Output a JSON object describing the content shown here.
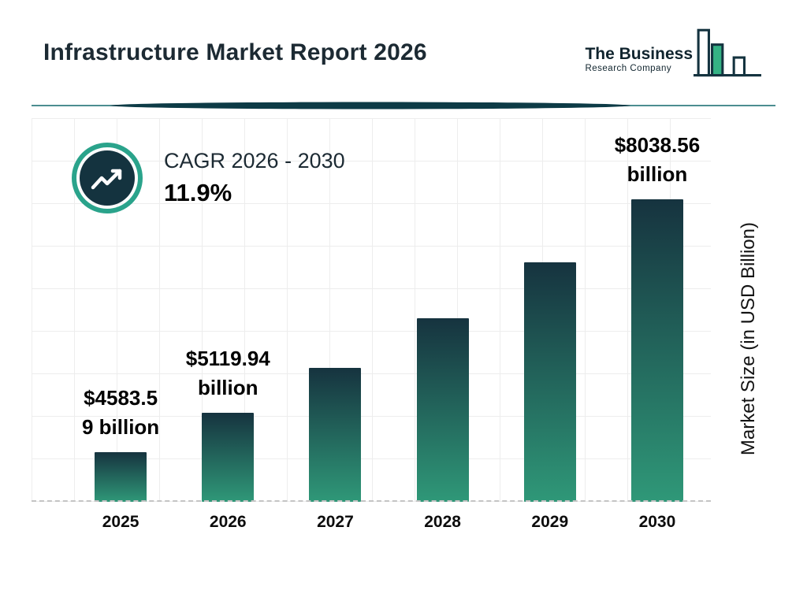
{
  "header": {
    "title": "Infrastructure Market Report 2026",
    "logo": {
      "line1": "The Business",
      "line2": "Research Company"
    }
  },
  "cagr": {
    "label": "CAGR 2026 - 2030",
    "value": "11.9%"
  },
  "chart_data": {
    "type": "bar",
    "title": "Infrastructure Market Report 2026",
    "categories": [
      "2025",
      "2026",
      "2027",
      "2028",
      "2029",
      "2030"
    ],
    "values": [
      4583.59,
      5119.94,
      5729.16,
      6410.93,
      7173.83,
      8038.56
    ],
    "labels": [
      {
        "lines": [
          "$4583.5",
          "9 billion"
        ]
      },
      {
        "lines": [
          "$5119.94",
          "billion"
        ]
      },
      {
        "lines": []
      },
      {
        "lines": []
      },
      {
        "lines": []
      },
      {
        "lines": [
          "$8038.56",
          "billion"
        ]
      }
    ],
    "xlabel": "",
    "ylabel": "Market Size (in USD Billion)",
    "ylim": [
      3900,
      8100
    ],
    "grid": true,
    "legend": "none",
    "bar_gradient_top": "#16333f",
    "bar_gradient_bottom": "#2f9878"
  },
  "colors": {
    "accent_teal": "#2aa38b",
    "dark_navy": "#14333f",
    "logo_green": "#35b284",
    "divider_teal": "#11696b"
  }
}
